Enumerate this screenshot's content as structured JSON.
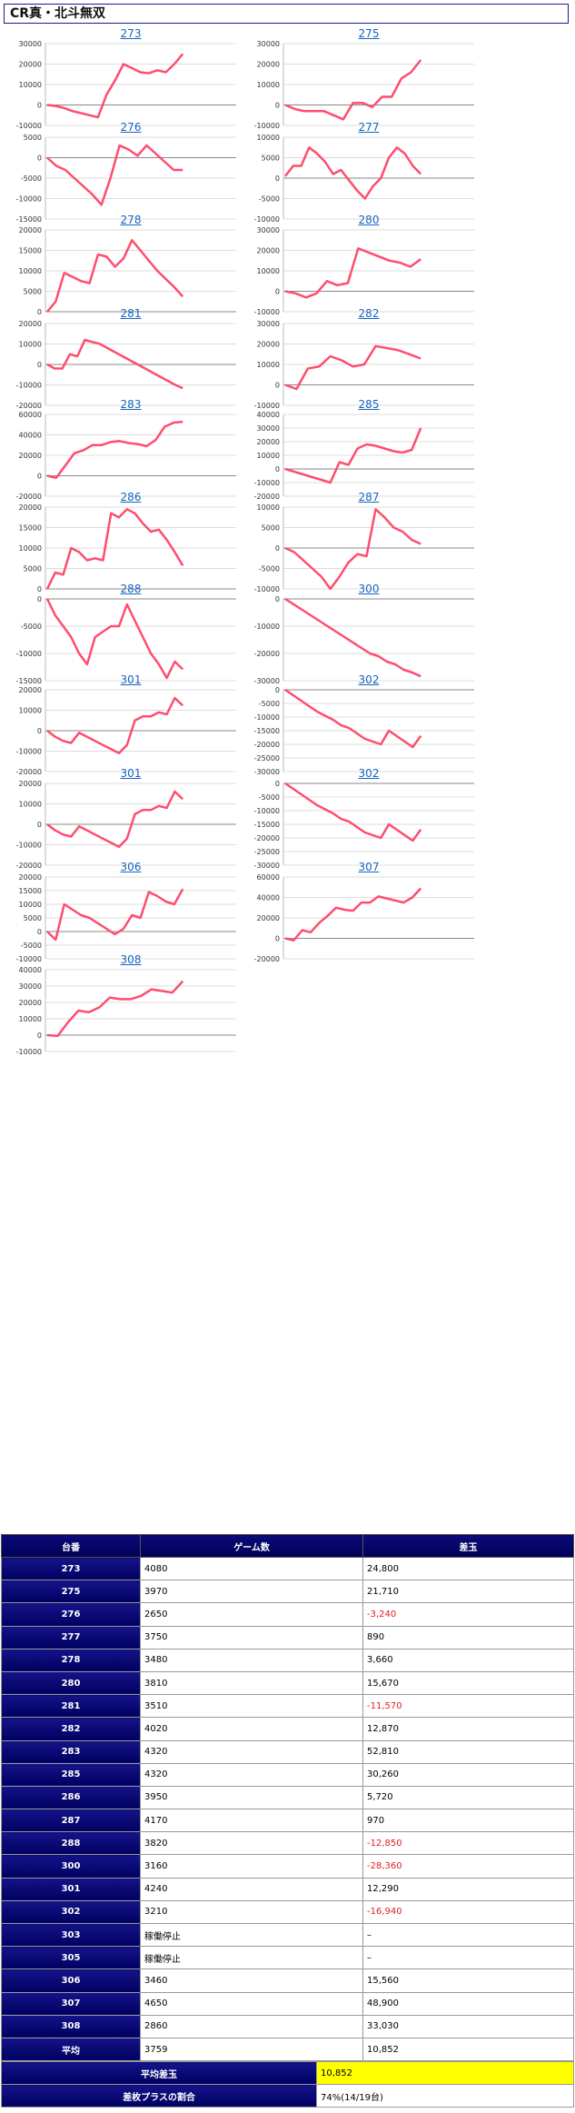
{
  "page_title": "CR真・北斗無双",
  "chart_data": [
    {
      "type": "line",
      "title": "273",
      "yticks": [
        30000,
        20000,
        10000,
        0,
        -10000
      ],
      "ylim": [
        -10000,
        30000
      ],
      "values": [
        0,
        -500,
        -1500,
        -3000,
        -4000,
        -5000,
        -6000,
        5000,
        12000,
        20000,
        18000,
        16000,
        15500,
        17000,
        16000,
        20000,
        25000
      ]
    },
    {
      "type": "line",
      "title": "275",
      "yticks": [
        30000,
        20000,
        10000,
        0,
        -10000
      ],
      "ylim": [
        -10000,
        30000
      ],
      "values": [
        0,
        -2000,
        -3000,
        -3000,
        -3000,
        -5000,
        -7000,
        1000,
        1000,
        -1000,
        4000,
        4000,
        13000,
        16000,
        22000
      ]
    },
    {
      "type": "line",
      "title": "276",
      "yticks": [
        5000,
        0,
        -5000,
        -10000,
        -15000
      ],
      "ylim": [
        -15000,
        5000
      ],
      "values": [
        0,
        -2000,
        -3000,
        -5000,
        -7000,
        -9000,
        -11500,
        -5000,
        3000,
        2000,
        500,
        3000,
        1000,
        -1000,
        -3000,
        -3000
      ]
    },
    {
      "type": "line",
      "title": "277",
      "yticks": [
        10000,
        5000,
        0,
        -5000,
        -10000
      ],
      "ylim": [
        -10000,
        10000
      ],
      "values": [
        500,
        3000,
        3000,
        7500,
        6000,
        4000,
        1000,
        2000,
        -500,
        -3000,
        -5000,
        -2000,
        0,
        5000,
        7500,
        6000,
        3000,
        1000
      ]
    },
    {
      "type": "line",
      "title": "278",
      "yticks": [
        20000,
        15000,
        10000,
        5000,
        0
      ],
      "ylim": [
        0,
        20000
      ],
      "values": [
        0,
        2500,
        9500,
        8500,
        7500,
        7000,
        14000,
        13500,
        11000,
        13000,
        17500,
        15000,
        12500,
        10000,
        8000,
        6000,
        3700
      ]
    },
    {
      "type": "line",
      "title": "280",
      "yticks": [
        30000,
        20000,
        10000,
        0,
        -10000
      ],
      "ylim": [
        -10000,
        30000
      ],
      "values": [
        0,
        -1000,
        -3000,
        -1000,
        5000,
        3000,
        4000,
        21000,
        19000,
        17000,
        15000,
        14000,
        12000,
        15700
      ]
    },
    {
      "type": "line",
      "title": "281",
      "yticks": [
        20000,
        10000,
        0,
        -10000,
        -20000
      ],
      "ylim": [
        -20000,
        20000
      ],
      "values": [
        0,
        -2000,
        -2000,
        5000,
        4000,
        12000,
        11000,
        10000,
        8000,
        6000,
        4000,
        2000,
        0,
        -2000,
        -4000,
        -6000,
        -8000,
        -10000,
        -11600
      ]
    },
    {
      "type": "line",
      "title": "282",
      "yticks": [
        30000,
        20000,
        10000,
        0,
        -10000
      ],
      "ylim": [
        -10000,
        30000
      ],
      "values": [
        0,
        -2000,
        8000,
        9000,
        14000,
        12000,
        9000,
        10000,
        19000,
        18000,
        17000,
        15000,
        12900
      ]
    },
    {
      "type": "line",
      "title": "283",
      "yticks": [
        60000,
        40000,
        20000,
        0,
        -20000
      ],
      "ylim": [
        -20000,
        60000
      ],
      "values": [
        0,
        -2000,
        10000,
        22000,
        25000,
        30000,
        30000,
        33000,
        34000,
        32000,
        31000,
        29000,
        35000,
        48000,
        52000,
        52800
      ]
    },
    {
      "type": "line",
      "title": "285",
      "yticks": [
        40000,
        30000,
        20000,
        10000,
        0,
        -10000,
        -20000
      ],
      "ylim": [
        -20000,
        40000
      ],
      "values": [
        0,
        -2000,
        -4000,
        -6000,
        -8000,
        -10000,
        5000,
        3000,
        15000,
        18000,
        17000,
        15000,
        13000,
        12000,
        14000,
        30000
      ]
    },
    {
      "type": "line",
      "title": "286",
      "yticks": [
        20000,
        15000,
        10000,
        5000,
        0
      ],
      "ylim": [
        0,
        20000
      ],
      "values": [
        0,
        4000,
        3500,
        10000,
        9000,
        7000,
        7500,
        7000,
        18500,
        17500,
        19500,
        18500,
        16000,
        14000,
        14500,
        12000,
        9000,
        5700
      ]
    },
    {
      "type": "line",
      "title": "287",
      "yticks": [
        10000,
        5000,
        0,
        -5000,
        -10000
      ],
      "ylim": [
        -10000,
        10000
      ],
      "values": [
        0,
        -1000,
        -3000,
        -5000,
        -7000,
        -10000,
        -7000,
        -3500,
        -1500,
        -2000,
        9500,
        7500,
        5000,
        4000,
        2000,
        1000
      ]
    },
    {
      "type": "line",
      "title": "288",
      "yticks": [
        0,
        -5000,
        -10000,
        -15000
      ],
      "ylim": [
        -15000,
        0
      ],
      "values": [
        0,
        -3000,
        -5000,
        -7000,
        -10000,
        -12000,
        -7000,
        -6000,
        -5000,
        -5000,
        -1000,
        -4000,
        -7000,
        -10000,
        -12000,
        -14500,
        -11500,
        -12900
      ]
    },
    {
      "type": "line",
      "title": "300",
      "yticks": [
        0,
        -10000,
        -20000,
        -30000
      ],
      "ylim": [
        -30000,
        0
      ],
      "values": [
        0,
        -2000,
        -4000,
        -6000,
        -8000,
        -10000,
        -12000,
        -14000,
        -16000,
        -18000,
        -20000,
        -21000,
        -23000,
        -24000,
        -26000,
        -27000,
        -28400
      ]
    },
    {
      "type": "line",
      "title": "301",
      "yticks": [
        20000,
        10000,
        0,
        -10000,
        -20000
      ],
      "ylim": [
        -20000,
        20000
      ],
      "values": [
        0,
        -3000,
        -5000,
        -6000,
        -1000,
        -3000,
        -5000,
        -7000,
        -9000,
        -11000,
        -7000,
        5000,
        7000,
        7000,
        9000,
        8000,
        16000,
        12300
      ]
    },
    {
      "type": "line",
      "title": "302",
      "yticks": [
        0,
        -5000,
        -10000,
        -15000,
        -20000,
        -25000,
        -30000
      ],
      "ylim": [
        -30000,
        0
      ],
      "values": [
        0,
        -2000,
        -4000,
        -6000,
        -8000,
        -9500,
        -11000,
        -13000,
        -14000,
        -16000,
        -18000,
        -19000,
        -20000,
        -15000,
        -17000,
        -19000,
        -21000,
        -16900
      ]
    },
    {
      "type": "line",
      "title": "301",
      "yticks": [
        20000,
        10000,
        0,
        -10000,
        -20000
      ],
      "ylim": [
        -20000,
        20000
      ],
      "values": [
        0,
        -3000,
        -5000,
        -6000,
        -1000,
        -3000,
        -5000,
        -7000,
        -9000,
        -11000,
        -7000,
        5000,
        7000,
        7000,
        9000,
        8000,
        16000,
        12300
      ]
    },
    {
      "type": "line",
      "title": "302",
      "yticks": [
        0,
        -5000,
        -10000,
        -15000,
        -20000,
        -25000,
        -30000
      ],
      "ylim": [
        -30000,
        0
      ],
      "values": [
        0,
        -2000,
        -4000,
        -6000,
        -8000,
        -9500,
        -11000,
        -13000,
        -14000,
        -16000,
        -18000,
        -19000,
        -20000,
        -15000,
        -17000,
        -19000,
        -21000,
        -16900
      ]
    },
    {
      "type": "line",
      "title": "306",
      "yticks": [
        20000,
        15000,
        10000,
        5000,
        0,
        -5000,
        -10000
      ],
      "ylim": [
        -10000,
        20000
      ],
      "values": [
        0,
        -3000,
        10000,
        8000,
        6000,
        5000,
        3000,
        1000,
        -1000,
        1000,
        6000,
        5000,
        14500,
        13000,
        11000,
        10000,
        15600
      ]
    },
    {
      "type": "line",
      "title": "307",
      "yticks": [
        60000,
        40000,
        20000,
        0,
        -20000
      ],
      "ylim": [
        -20000,
        60000
      ],
      "values": [
        0,
        -2000,
        8000,
        6000,
        15000,
        22000,
        30000,
        28000,
        27000,
        35000,
        35000,
        41000,
        39000,
        37000,
        35000,
        40000,
        48900
      ]
    },
    {
      "type": "line",
      "title": "308",
      "yticks": [
        40000,
        30000,
        20000,
        10000,
        0,
        -10000
      ],
      "ylim": [
        -10000,
        40000
      ],
      "values": [
        0,
        -500,
        8000,
        15000,
        14000,
        17000,
        23000,
        22000,
        22000,
        24000,
        28000,
        27000,
        26000,
        33000
      ]
    }
  ],
  "table": {
    "headers": [
      "台番",
      "ゲーム数",
      "差玉"
    ],
    "rows": [
      [
        "273",
        "4080",
        "24,800",
        false
      ],
      [
        "275",
        "3970",
        "21,710",
        false
      ],
      [
        "276",
        "2650",
        "-3,240",
        true
      ],
      [
        "277",
        "3750",
        "890",
        false
      ],
      [
        "278",
        "3480",
        "3,660",
        false
      ],
      [
        "280",
        "3810",
        "15,670",
        false
      ],
      [
        "281",
        "3510",
        "-11,570",
        true
      ],
      [
        "282",
        "4020",
        "12,870",
        false
      ],
      [
        "283",
        "4320",
        "52,810",
        false
      ],
      [
        "285",
        "4320",
        "30,260",
        false
      ],
      [
        "286",
        "3950",
        "5,720",
        false
      ],
      [
        "287",
        "4170",
        "970",
        false
      ],
      [
        "288",
        "3820",
        "-12,850",
        true
      ],
      [
        "300",
        "3160",
        "-28,360",
        true
      ],
      [
        "301",
        "4240",
        "12,290",
        false
      ],
      [
        "302",
        "3210",
        "-16,940",
        true
      ],
      [
        "303",
        "稼働停止",
        "–",
        false
      ],
      [
        "305",
        "稼働停止",
        "–",
        false
      ],
      [
        "306",
        "3460",
        "15,560",
        false
      ],
      [
        "307",
        "4650",
        "48,900",
        false
      ],
      [
        "308",
        "2860",
        "33,030",
        false
      ],
      [
        "平均",
        "3759",
        "10,852",
        false
      ]
    ]
  },
  "summary": {
    "avg_label": "平均差玉",
    "avg_value": "10,852",
    "plus_label": "差枚プラスの割合",
    "plus_value": "74%(14/19台)"
  },
  "colors": {
    "line": "#ff4d6d",
    "header_bg": "#000060",
    "highlight": "#ffff00",
    "negative": "#e02020"
  }
}
